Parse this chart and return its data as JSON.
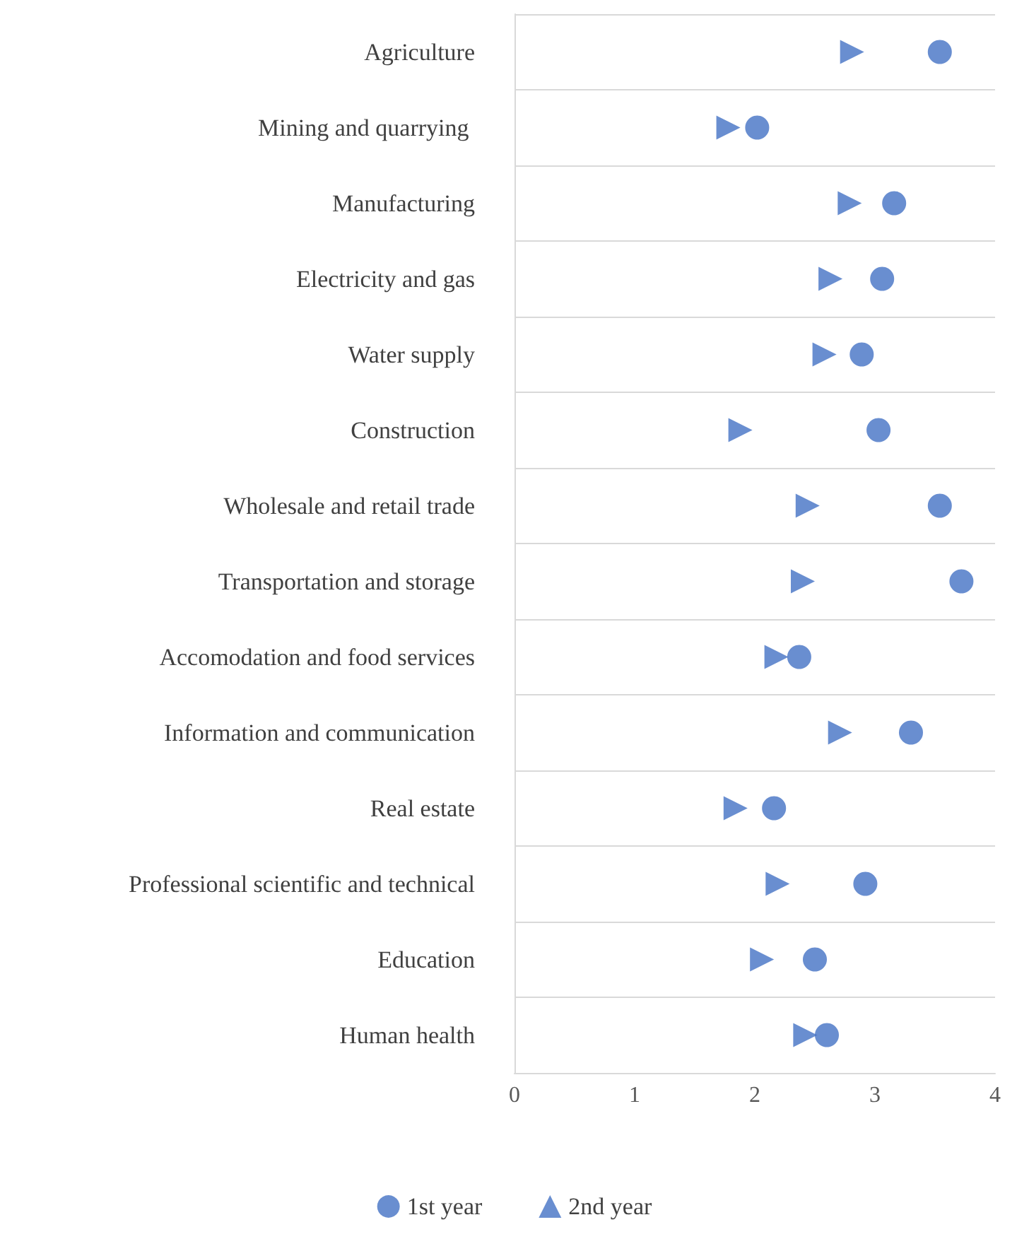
{
  "chart_data": {
    "type": "scatter",
    "orientation": "horizontal",
    "categories": [
      "Agriculture",
      "Mining and quarrying ",
      "Manufacturing",
      "Electricity and gas",
      "Water supply",
      "Construction",
      "Wholesale and retail trade",
      "Transportation and storage",
      "Accomodation and food services",
      "Information and communication",
      "Real estate",
      "Professional scientific and technical",
      "Education",
      "Human health"
    ],
    "series": [
      {
        "name": "1st year",
        "color": "#4472c4",
        "marker": "circle",
        "values": [
          3.54,
          2.02,
          3.16,
          3.06,
          2.89,
          3.03,
          3.54,
          3.72,
          2.37,
          3.3,
          2.16,
          2.92,
          2.5,
          2.6
        ]
      },
      {
        "name": "2nd year",
        "color": "#4472c4",
        "marker": "triangle",
        "values": [
          2.81,
          1.78,
          2.79,
          2.63,
          2.58,
          1.88,
          2.44,
          2.4,
          2.18,
          2.71,
          1.84,
          2.19,
          2.06,
          2.42
        ]
      }
    ],
    "xlim": [
      0,
      4
    ],
    "xticks": [
      0,
      1,
      2,
      3,
      4
    ],
    "grid": "y",
    "legend": "bottom"
  }
}
